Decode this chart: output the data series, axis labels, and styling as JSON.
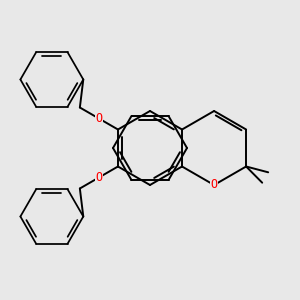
{
  "background_color": "#e8e8e8",
  "bond_color": "#000000",
  "oxygen_color": "#ff0000",
  "lw": 1.4,
  "figsize": [
    3.0,
    3.0
  ],
  "dpi": 100,
  "xlim": [
    0,
    300
  ],
  "ylim": [
    0,
    300
  ]
}
